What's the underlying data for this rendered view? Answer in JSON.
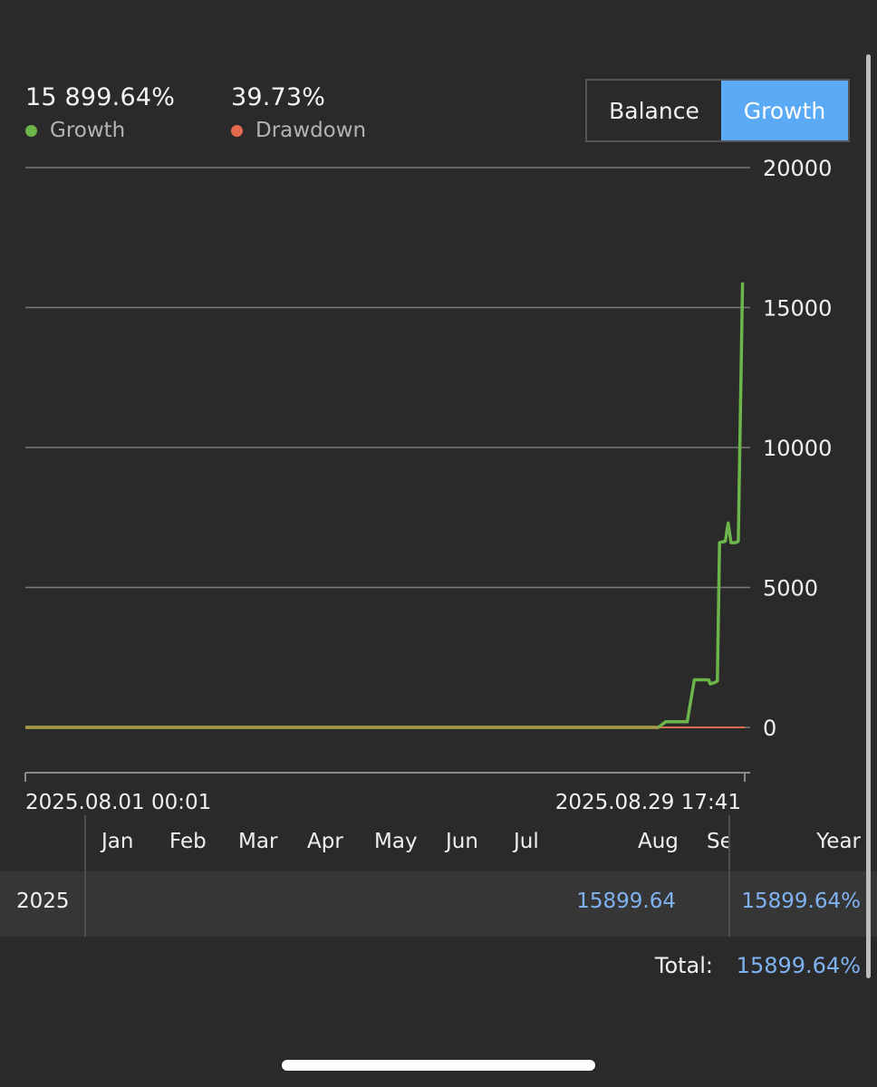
{
  "summary": {
    "growth_value": "15 899.64%",
    "growth_label": "Growth",
    "drawdown_value": "39.73%",
    "drawdown_label": "Drawdown"
  },
  "toggle": {
    "balance_label": "Balance",
    "growth_label": "Growth",
    "selected": "Growth"
  },
  "colors": {
    "growth": "#6cb54a",
    "drawdown": "#e36a4e",
    "accent": "#5aaaf5",
    "link": "#7fb2f0"
  },
  "chart_data": {
    "type": "line",
    "y_ticks": [
      "20000",
      "15000",
      "10000",
      "5000",
      "0"
    ],
    "ylim": [
      0,
      20000
    ],
    "x_start_label": "2025.08.01 00:01",
    "x_end_label": "2025.08.29 17:41",
    "grid": true,
    "series": [
      {
        "name": "Growth",
        "color": "#6cb54a",
        "points": [
          [
            0,
            0
          ],
          [
            0.88,
            0
          ],
          [
            0.89,
            200
          ],
          [
            0.92,
            200
          ],
          [
            0.93,
            1700
          ],
          [
            0.95,
            1700
          ],
          [
            0.952,
            1550
          ],
          [
            0.958,
            1600
          ],
          [
            0.962,
            1650
          ],
          [
            0.965,
            6600
          ],
          [
            0.973,
            6650
          ],
          [
            0.977,
            7300
          ],
          [
            0.981,
            6600
          ],
          [
            0.987,
            6600
          ],
          [
            0.991,
            6650
          ],
          [
            0.997,
            15900
          ]
        ]
      },
      {
        "name": "Drawdown",
        "color": "#e36a4e",
        "points": [
          [
            0,
            0
          ],
          [
            1,
            0
          ]
        ]
      }
    ]
  },
  "monthly_table": {
    "months": [
      "Jan",
      "Feb",
      "Mar",
      "Apr",
      "May",
      "Jun",
      "Jul",
      "Aug",
      "Se"
    ],
    "year_header": "Year",
    "row": {
      "year": "2025",
      "aug_value": "15899.64",
      "year_value": "15899.64%"
    },
    "total_label": "Total:",
    "total_value": "15899.64%"
  }
}
